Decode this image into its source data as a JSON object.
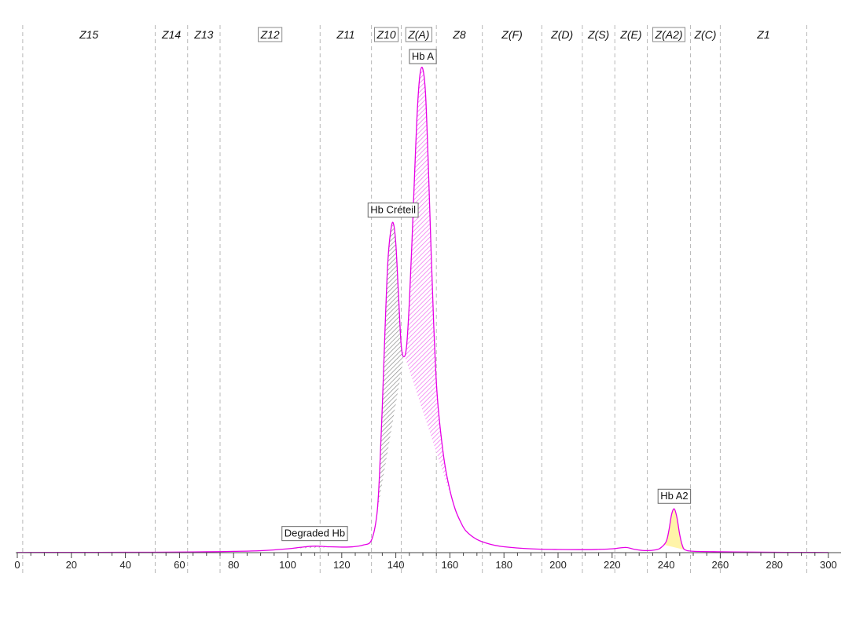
{
  "chart_data": {
    "type": "line",
    "title": "",
    "xlabel": "",
    "ylabel": "",
    "xlim": [
      0,
      300
    ],
    "x_ticks": [
      0,
      20,
      40,
      60,
      80,
      100,
      120,
      140,
      160,
      180,
      200,
      220,
      240,
      260,
      280,
      300
    ],
    "trace_color": "#e600e6",
    "zones": [
      {
        "label": "Z15",
        "start": 2,
        "end": 51,
        "boxed": false
      },
      {
        "label": "Z14",
        "start": 51,
        "end": 63,
        "boxed": false
      },
      {
        "label": "Z13",
        "start": 63,
        "end": 75,
        "boxed": false
      },
      {
        "label": "Z12",
        "start": 75,
        "end": 112,
        "boxed": true
      },
      {
        "label": "Z11",
        "start": 112,
        "end": 131,
        "boxed": false
      },
      {
        "label": "Z10",
        "start": 131,
        "end": 142,
        "boxed": true
      },
      {
        "label": "Z(A)",
        "start": 142,
        "end": 155,
        "boxed": true
      },
      {
        "label": "Z8",
        "start": 155,
        "end": 172,
        "boxed": false
      },
      {
        "label": "Z(F)",
        "start": 172,
        "end": 194,
        "boxed": false
      },
      {
        "label": "Z(D)",
        "start": 194,
        "end": 209,
        "boxed": false
      },
      {
        "label": "Z(S)",
        "start": 209,
        "end": 221,
        "boxed": false
      },
      {
        "label": "Z(E)",
        "start": 221,
        "end": 233,
        "boxed": false
      },
      {
        "label": "Z(A2)",
        "start": 233,
        "end": 249,
        "boxed": true
      },
      {
        "label": "Z(C)",
        "start": 249,
        "end": 260,
        "boxed": false
      },
      {
        "label": "Z1",
        "start": 260,
        "end": 292,
        "boxed": false
      }
    ],
    "zone_boundaries": [
      2,
      51,
      63,
      75,
      112,
      131,
      142,
      155,
      172,
      194,
      209,
      221,
      233,
      249,
      260,
      292
    ],
    "series": [
      {
        "x": [
          0,
          20,
          40,
          50,
          60,
          70,
          80,
          90,
          100,
          105,
          110,
          115,
          120,
          124,
          128,
          131,
          133,
          134,
          135,
          136,
          137,
          138,
          139,
          140,
          141,
          142,
          143,
          144,
          145,
          146,
          147,
          148,
          149,
          150,
          151,
          152,
          153,
          154,
          155,
          156,
          158,
          160,
          162,
          164,
          166,
          170,
          175,
          180,
          190,
          200,
          210,
          215,
          220,
          225,
          228,
          232,
          236,
          238,
          240,
          241,
          242,
          243,
          244,
          245,
          246,
          247,
          250,
          260,
          270,
          280,
          290,
          300
        ],
        "y": [
          0.003,
          0.004,
          0.005,
          0.006,
          0.008,
          0.012,
          0.018,
          0.028,
          0.055,
          0.078,
          0.094,
          0.085,
          0.08,
          0.084,
          0.11,
          0.18,
          0.55,
          1.15,
          2.1,
          3.2,
          4.15,
          4.6,
          4.75,
          4.45,
          3.7,
          2.98,
          2.82,
          2.98,
          3.6,
          4.5,
          5.5,
          6.4,
          6.9,
          6.96,
          6.6,
          5.6,
          4.4,
          3.3,
          2.45,
          1.95,
          1.3,
          0.9,
          0.62,
          0.44,
          0.31,
          0.19,
          0.12,
          0.085,
          0.055,
          0.045,
          0.043,
          0.047,
          0.055,
          0.075,
          0.05,
          0.03,
          0.04,
          0.07,
          0.16,
          0.32,
          0.55,
          0.63,
          0.5,
          0.26,
          0.1,
          0.04,
          0.02,
          0.012,
          0.008,
          0.005,
          0.004,
          0.003
        ]
      }
    ],
    "peaks": [
      {
        "label": "Degraded Hb",
        "x": 110,
        "fill": "#9a9a9a",
        "range": [
          100,
          118
        ],
        "label_dy": 38
      },
      {
        "label": "Hb Créteil",
        "x": 139,
        "fill": "#7f7f7f",
        "range": [
          133,
          143
        ],
        "label_dy": 28
      },
      {
        "label": "Hb A",
        "x": 150,
        "fill": "#f06cf0",
        "range": [
          142,
          162
        ],
        "label_dy": 28
      },
      {
        "label": "Hb A2",
        "x": 243,
        "fill": "#fff4a8",
        "range": [
          239,
          247
        ],
        "label_dy": 28
      }
    ]
  }
}
